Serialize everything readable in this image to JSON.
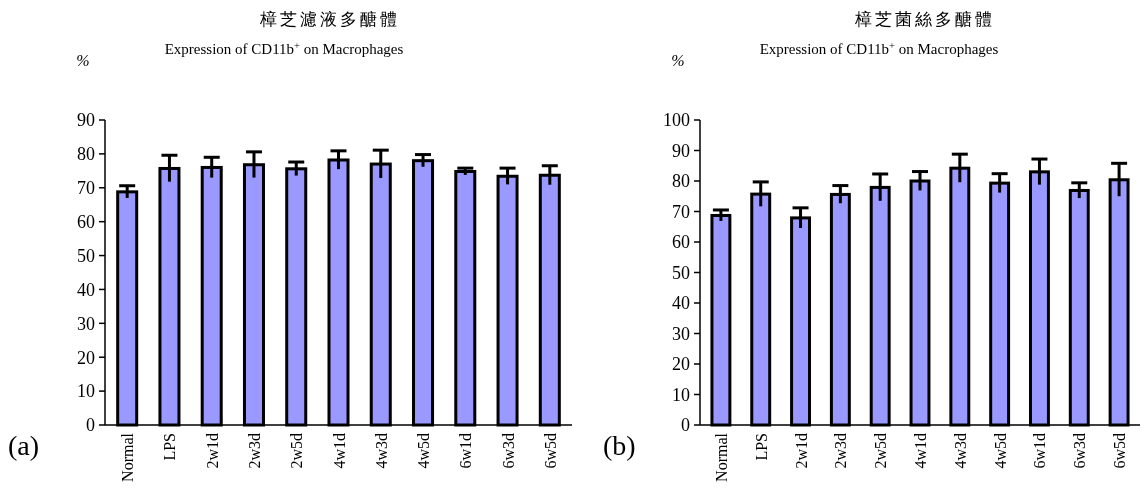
{
  "chart_data": [
    {
      "type": "bar",
      "title": "樟芝濾液多醣體",
      "subtitle": "Expression of CD11b$^{+}$ on Macrophages",
      "ylabel": "%",
      "annotations": [
        "(a)"
      ],
      "categories": [
        "Normal",
        "LPS",
        "2w1d",
        "2w3d",
        "2w5d",
        "4w1d",
        "4w3d",
        "4w5d",
        "6w1d",
        "6w3d",
        "6w5d"
      ],
      "values": [
        68.8,
        75.7,
        76,
        76.8,
        75.6,
        78.2,
        77,
        78,
        74.8,
        73.4,
        73.7
      ],
      "errors": [
        1.8,
        3.9,
        3,
        3.8,
        2,
        2.7,
        4.1,
        1.8,
        1,
        2.4,
        2.8
      ],
      "color": "#9999ff",
      "ylim": [
        0,
        90
      ],
      "yticks": [
        0,
        10,
        20,
        30,
        40,
        50,
        60,
        70,
        80,
        90
      ],
      "grid": false
    },
    {
      "type": "bar",
      "title": "樟芝菌絲多醣體",
      "subtitle": "Expression of CD11b$^{+}$ on Macrophages",
      "ylabel": "%",
      "annotations": [
        "(b)"
      ],
      "categories": [
        "Normal",
        "LPS",
        "2w1d",
        "2w3d",
        "2w5d",
        "4w1d",
        "4w3d",
        "4w5d",
        "6w1d",
        "6w3d",
        "6w5d"
      ],
      "values": [
        68.7,
        75.7,
        67.9,
        75.6,
        77.9,
        80,
        84.2,
        79.3,
        83,
        76.9,
        80.4
      ],
      "errors": [
        1.8,
        4,
        3.3,
        2.9,
        4.4,
        3.1,
        4.6,
        3.1,
        4.2,
        2.5,
        5.4
      ],
      "color": "#9999ff",
      "ylim": [
        0,
        100
      ],
      "yticks": [
        0,
        10,
        20,
        30,
        40,
        50,
        60,
        70,
        80,
        90,
        100
      ],
      "grid": false
    }
  ]
}
